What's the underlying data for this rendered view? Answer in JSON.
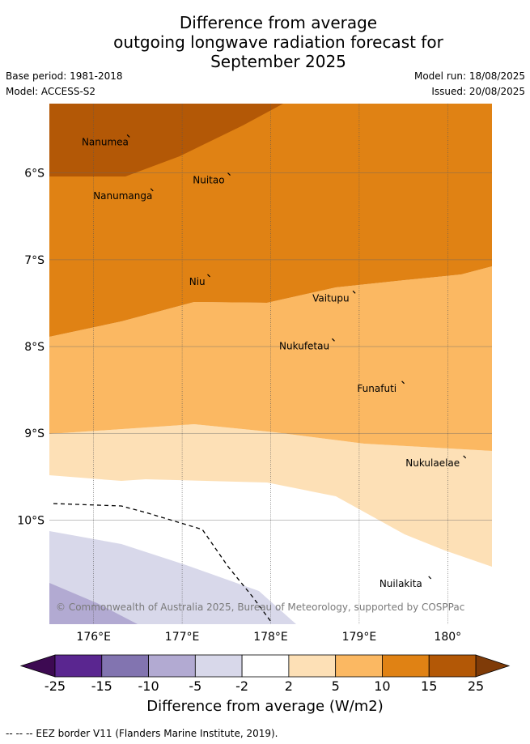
{
  "title": {
    "line1": "Difference from average",
    "line2": "outgoing longwave radiation forecast for",
    "line3": "September 2025"
  },
  "meta": {
    "base_period": "Base period: 1981-2018",
    "model": "Model: ACCESS-S2",
    "model_run": "Model run: 18/08/2025",
    "issued": "Issued: 20/08/2025"
  },
  "map": {
    "lon_range": [
      175.5,
      180.5
    ],
    "lat_range": [
      -11.2,
      -5.2
    ],
    "lat_ticks": [
      {
        "value": -6,
        "label": "6°S"
      },
      {
        "value": -7,
        "label": "7°S"
      },
      {
        "value": -8,
        "label": "8°S"
      },
      {
        "value": -9,
        "label": "9°S"
      },
      {
        "value": -10,
        "label": "10°S"
      }
    ],
    "lon_ticks": [
      {
        "value": 176,
        "label": "176°E"
      },
      {
        "value": 177,
        "label": "177°E"
      },
      {
        "value": 178,
        "label": "178°E"
      },
      {
        "value": 179,
        "label": "179°E"
      },
      {
        "value": 180,
        "label": "180°"
      }
    ],
    "places": [
      {
        "name": "Nanumea",
        "lon": 176.13,
        "lat": -5.68
      },
      {
        "name": "Nuitao",
        "lon": 177.3,
        "lat": -6.12
      },
      {
        "name": "Nanumanga",
        "lon": 176.33,
        "lat": -6.3
      },
      {
        "name": "Niu",
        "lon": 177.17,
        "lat": -7.29
      },
      {
        "name": "Vaitupu",
        "lon": 178.68,
        "lat": -7.48
      },
      {
        "name": "Nukufetau",
        "lon": 178.38,
        "lat": -8.03
      },
      {
        "name": "Funafuti",
        "lon": 179.2,
        "lat": -8.52
      },
      {
        "name": "Nukulaelae",
        "lon": 179.83,
        "lat": -9.38
      },
      {
        "name": "Nuilakita",
        "lon": 179.47,
        "lat": -10.77
      }
    ],
    "copyright": "© Commonwealth of Australia 2025, Bureau of Meteorology, supported by COSPPac",
    "eez_border": "dashed"
  },
  "colorbar": {
    "ticks": [
      "-25",
      "-15",
      "-10",
      "-5",
      "-2",
      "2",
      "5",
      "10",
      "15",
      "25"
    ],
    "colors": [
      "#5a2690",
      "#8274b0",
      "#b2aad2",
      "#d8d8ea",
      "#ffffff",
      "#fde0b6",
      "#fbb862",
      "#e08214",
      "#b35806"
    ],
    "under_color": "#3d0a52",
    "over_color": "#7f3b08",
    "label": "Difference from average (W/m2)"
  },
  "footer": "-- -- -- EEZ border V11 (Flanders Marine Institute, 2019)."
}
